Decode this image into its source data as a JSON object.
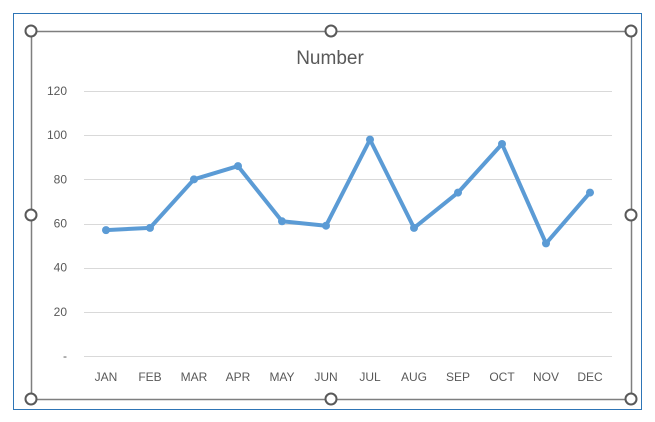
{
  "chart_data": {
    "type": "line",
    "title": "Number",
    "categories": [
      "JAN",
      "FEB",
      "MAR",
      "APR",
      "MAY",
      "JUN",
      "JUL",
      "AUG",
      "SEP",
      "OCT",
      "NOV",
      "DEC"
    ],
    "values": [
      57,
      58,
      80,
      86,
      61,
      59,
      98,
      58,
      74,
      96,
      51,
      74
    ],
    "ylim": [
      0,
      120
    ],
    "yticks": [
      0,
      20,
      40,
      60,
      80,
      100,
      120
    ],
    "ytick_labels": [
      "-",
      "20",
      "40",
      "60",
      "80",
      "100",
      "120"
    ],
    "grid": true,
    "legend": "none",
    "series_color": "#5B9BD5",
    "grid_color": "#D9D9D9",
    "text_color": "#595959"
  }
}
